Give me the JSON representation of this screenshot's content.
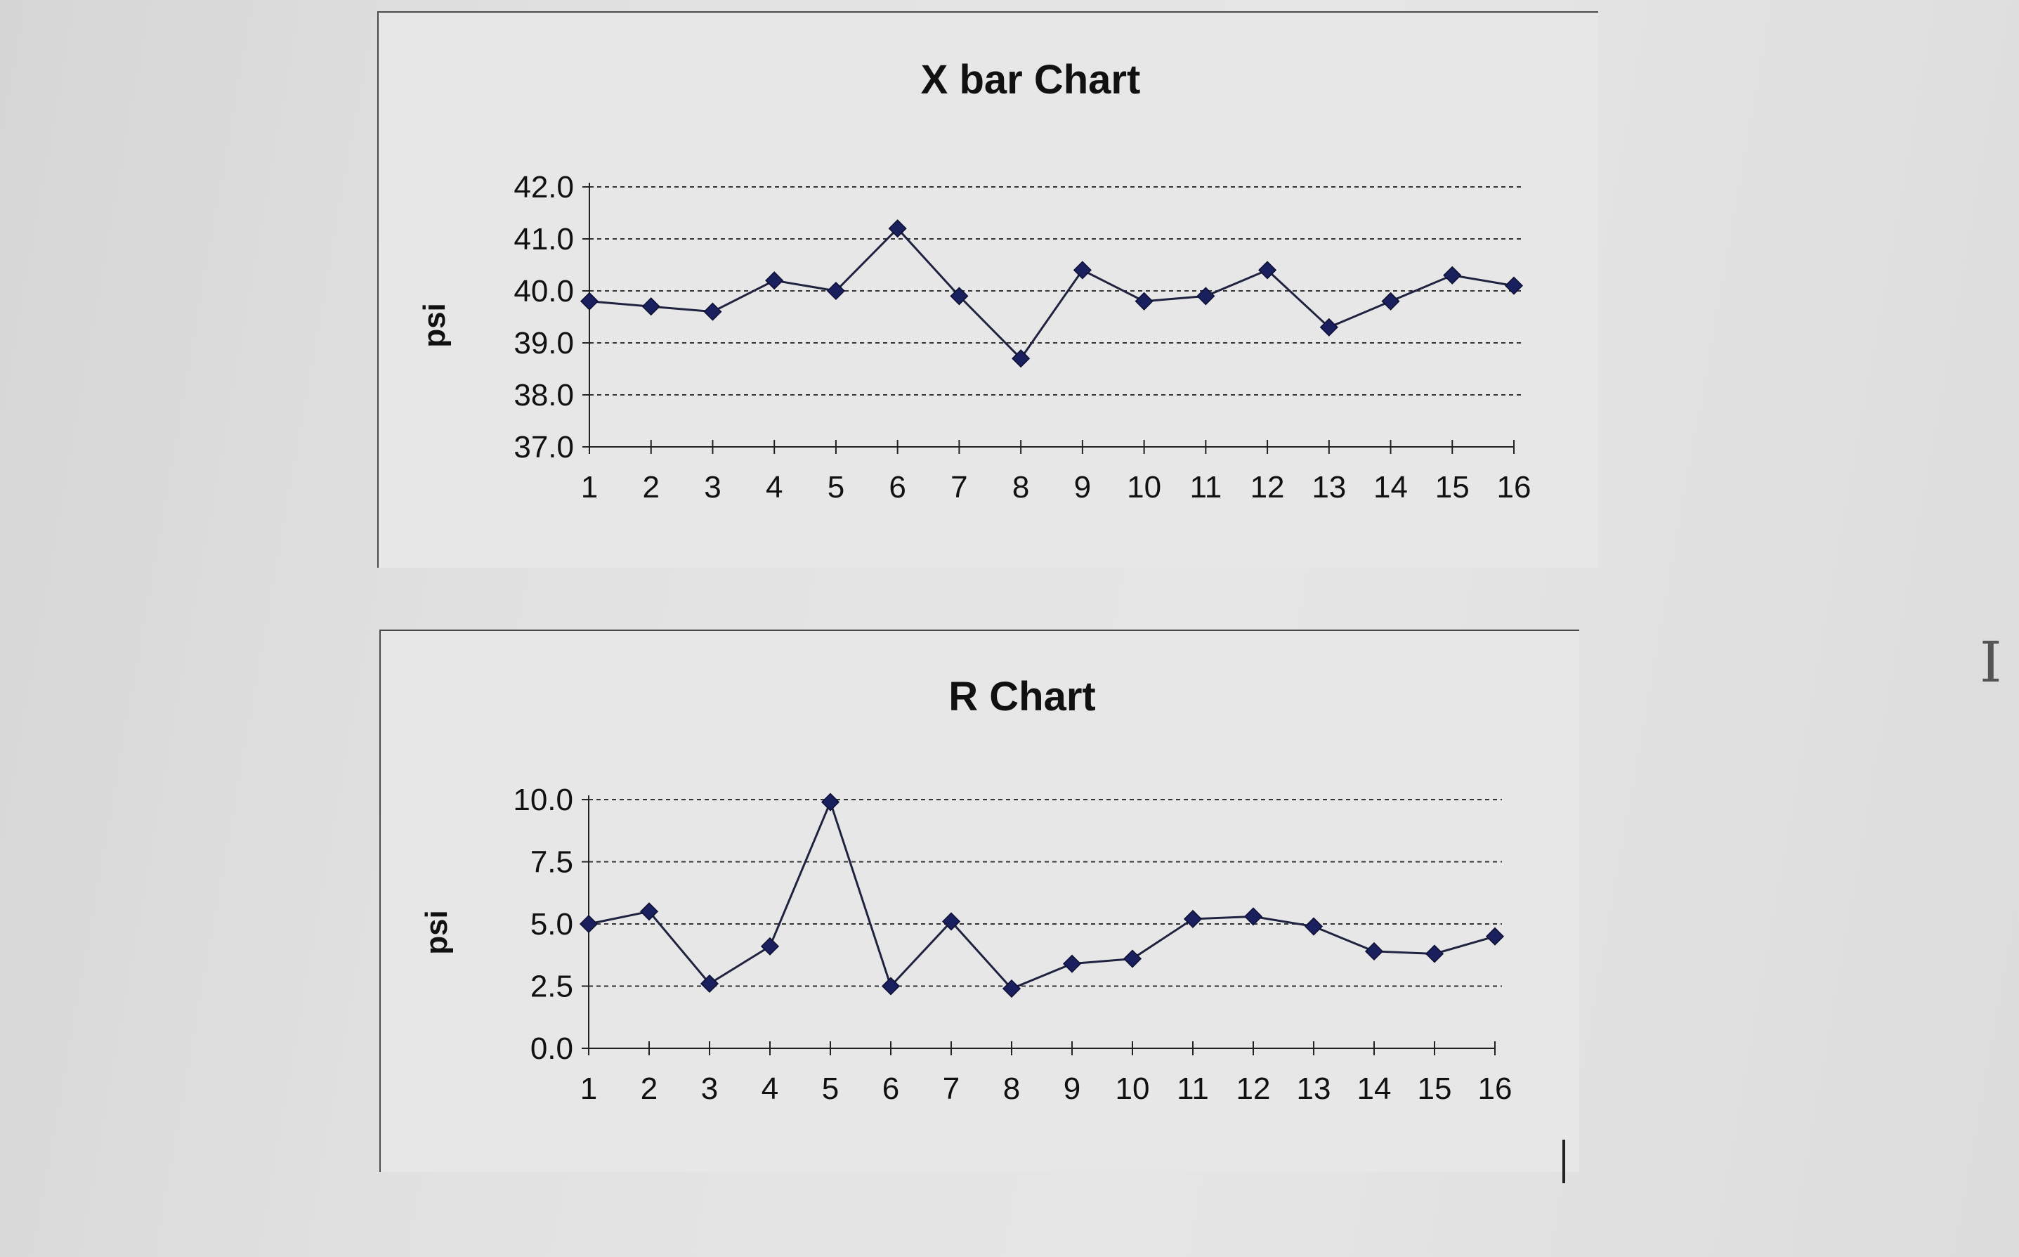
{
  "chart_data": [
    {
      "type": "line",
      "title": "X bar Chart",
      "xlabel": "",
      "ylabel": "psi",
      "ylim": [
        37.0,
        42.0
      ],
      "yticks": [
        "42.0",
        "41.0",
        "40.0",
        "39.0",
        "38.0",
        "37.0"
      ],
      "categories": [
        "1",
        "2",
        "3",
        "4",
        "5",
        "6",
        "7",
        "8",
        "9",
        "10",
        "11",
        "12",
        "13",
        "14",
        "15",
        "16"
      ],
      "values": [
        39.8,
        39.7,
        39.6,
        40.2,
        40.0,
        41.2,
        39.9,
        38.7,
        40.4,
        39.8,
        39.9,
        40.4,
        39.3,
        39.8,
        40.3,
        40.1
      ],
      "grid": "horizontal-dashed",
      "marker": "diamond",
      "color": "#1a1f5e"
    },
    {
      "type": "line",
      "title": "R Chart",
      "xlabel": "",
      "ylabel": "psi",
      "ylim": [
        0.0,
        10.0
      ],
      "yticks": [
        "10.0",
        "7.5",
        "5.0",
        "2.5",
        "0.0"
      ],
      "categories": [
        "1",
        "2",
        "3",
        "4",
        "5",
        "6",
        "7",
        "8",
        "9",
        "10",
        "11",
        "12",
        "13",
        "14",
        "15",
        "16"
      ],
      "values": [
        5.0,
        5.5,
        2.6,
        4.1,
        9.9,
        2.5,
        5.1,
        2.4,
        3.4,
        3.6,
        5.2,
        5.3,
        4.9,
        3.9,
        3.8,
        4.5
      ],
      "grid": "horizontal-dashed",
      "marker": "diamond",
      "color": "#1a1f5e"
    }
  ]
}
